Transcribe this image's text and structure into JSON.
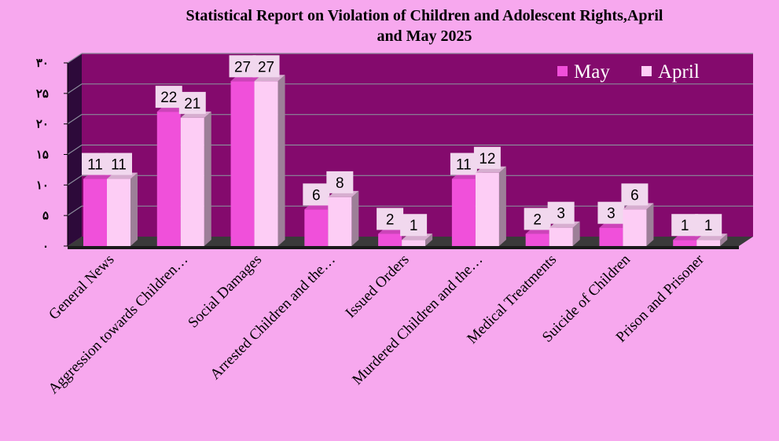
{
  "chart_data": {
    "type": "bar",
    "title": "Statistical Report on Violation of Children and Adolescent Rights,April and May 2025",
    "title_lines": [
      "Statistical Report on Violation of Children and Adolescent Rights,April",
      "and May 2025"
    ],
    "categories": [
      "General News",
      "Aggression towards Children…",
      "Social Damages",
      "Arrested Children and the…",
      "Issued Orders",
      "Murdered Children and the…",
      "Medical Treatments",
      "Suicide of Children",
      "Prison and Prisoner"
    ],
    "series": [
      {
        "name": "May",
        "color": "#f050da",
        "values": [
          11,
          22,
          27,
          6,
          2,
          11,
          2,
          3,
          1
        ]
      },
      {
        "name": "April",
        "color": "#fdcdf5",
        "values": [
          11,
          21,
          27,
          8,
          1,
          12,
          3,
          6,
          1
        ]
      }
    ],
    "ylim": [
      0,
      30
    ],
    "yticks": [
      0,
      5,
      10,
      15,
      20,
      25,
      30
    ],
    "ytick_labels": [
      "۰",
      "۵",
      "۱۰",
      "۱۵",
      "۲۰",
      "۲۵",
      "۳۰"
    ],
    "xlabel": "",
    "ylabel": "",
    "legend_position": "top-right",
    "grid": true,
    "plot_background": "#840a6d",
    "page_background": "#f7a8ee"
  }
}
